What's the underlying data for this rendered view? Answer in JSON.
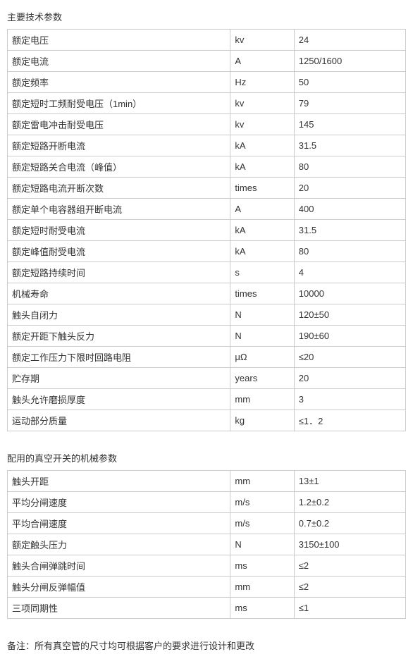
{
  "title1": "主要技术参数",
  "table1": {
    "columns": [
      "param",
      "unit",
      "value"
    ],
    "rows": [
      [
        "额定电压",
        "kv",
        "24"
      ],
      [
        "额定电流",
        "A",
        "1250/1600"
      ],
      [
        "额定频率",
        "Hz",
        "50"
      ],
      [
        "额定短时工频耐受电压（1min）",
        "kv",
        "79"
      ],
      [
        "额定雷电冲击耐受电压",
        "kv",
        "145"
      ],
      [
        "额定短路开断电流",
        "kA",
        "31.5"
      ],
      [
        "额定短路关合电流（峰值）",
        "kA",
        "80"
      ],
      [
        "额定短路电流开断次数",
        "times",
        "20"
      ],
      [
        "额定单个电容器组开断电流",
        "A",
        "400"
      ],
      [
        "额定短时耐受电流",
        "kA",
        "31.5"
      ],
      [
        "额定峰值耐受电流",
        "kA",
        "80"
      ],
      [
        "额定短路持续时间",
        "s",
        "4"
      ],
      [
        "机械寿命",
        "times",
        "10000"
      ],
      [
        "触头自闭力",
        "N",
        "120±50"
      ],
      [
        "额定开距下触头反力",
        "N",
        "190±60"
      ],
      [
        "额定工作压力下限时回路电阻",
        "μΩ",
        "≤20"
      ],
      [
        "贮存期",
        "years",
        "20"
      ],
      [
        "触头允许磨损厚度",
        "mm",
        "3"
      ],
      [
        "运动部分质量",
        "kg",
        "≤1．2"
      ]
    ]
  },
  "title2": "配用的真空开关的机械参数",
  "table2": {
    "columns": [
      "param",
      "unit",
      "value"
    ],
    "rows": [
      [
        "触头开距",
        "mm",
        "13±1"
      ],
      [
        "平均分闸速度",
        "m/s",
        "1.2±0.2"
      ],
      [
        "平均合闸速度",
        "m/s",
        "0.7±0.2"
      ],
      [
        "额定触头压力",
        "N",
        "3150±100"
      ],
      [
        "触头合闸弹跳时间",
        "ms",
        "≤2"
      ],
      [
        "触头分闸反弹幅值",
        "mm",
        "≤2"
      ],
      [
        "三项同期性",
        "ms",
        "≤1"
      ]
    ]
  },
  "note": "备注：所有真空管的尺寸均可根据客户的要求进行设计和更改"
}
